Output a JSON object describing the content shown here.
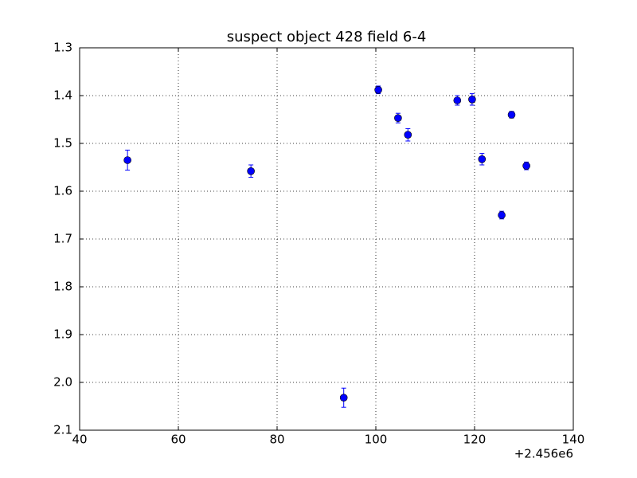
{
  "chart_data": {
    "type": "errorbar",
    "title": "suspect object 428 field 6-4",
    "x_offset_label": "+2.456e6",
    "x": [
      49.7,
      74.7,
      93.5,
      100.5,
      104.5,
      106.5,
      116.5,
      119.5,
      121.5,
      125.5,
      127.5,
      130.5
    ],
    "series": [
      {
        "color": "#0000ff",
        "values": [
          1.535,
          1.558,
          2.032,
          1.388,
          1.447,
          1.482,
          1.41,
          1.408,
          1.533,
          1.65,
          1.44,
          1.547
        ],
        "errors": [
          0.021,
          0.013,
          0.02,
          0.008,
          0.01,
          0.013,
          0.01,
          0.012,
          0.012,
          0.008,
          0.007,
          0.008
        ]
      }
    ],
    "xlim": [
      40,
      140
    ],
    "xticks": [
      40,
      60,
      80,
      100,
      120,
      140
    ],
    "ylim": [
      2.1,
      1.3
    ],
    "yticks": [
      1.3,
      1.4,
      1.5,
      1.6,
      1.7,
      1.8,
      1.9,
      {
        "value": 2,
        "label": "2.0"
      },
      2.1
    ],
    "grid": true
  }
}
